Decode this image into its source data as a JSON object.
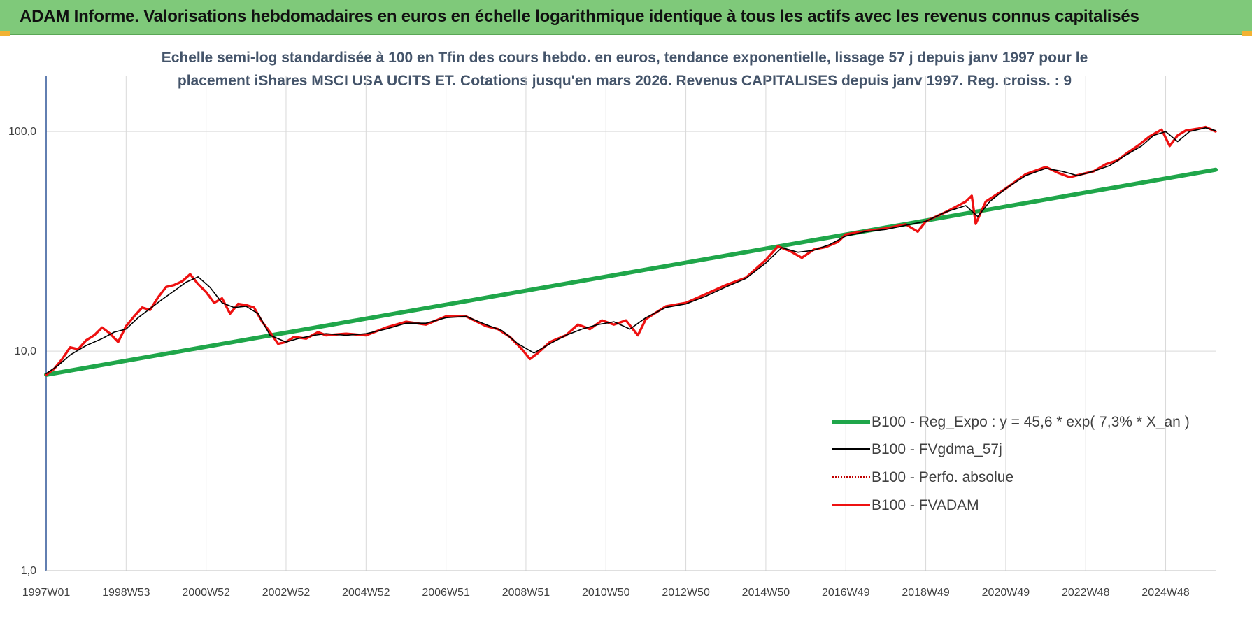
{
  "header": {
    "title": "ADAM Informe. Valorisations hebdomadaires en euros en échelle logarithmique identique à tous les actifs avec les revenus connus capitalisés"
  },
  "colors": {
    "header_bg": "#7fc97a",
    "trend": "#1fa64a",
    "smooth": "#000000",
    "perf": "#c00000",
    "fvadam": "#ee1111",
    "grid": "#d9d9d9",
    "axis": "#2f5597"
  },
  "chart_data": {
    "type": "line",
    "title_lines": [
      "Echelle semi-log standardisée à 100 en Tfin des cours hebdo. en euros, tendance exponentielle, lissage 57 j depuis janv 1997 pour le",
      "placement iShares MSCI USA UCITS ET. Cotations jusqu'en mars 2026. Revenus CAPITALISES depuis janv 1997. Reg. croiss. : 9"
    ],
    "y_scale": "log",
    "ylim": [
      1,
      180
    ],
    "y_ticks": [
      {
        "value": 1,
        "label": "1,0"
      },
      {
        "value": 10,
        "label": "10,0"
      },
      {
        "value": 100,
        "label": "100,0"
      }
    ],
    "xlim": [
      1997.0,
      2026.25
    ],
    "x_ticks": [
      {
        "value": 1997.0,
        "label": "1997W01"
      },
      {
        "value": 1999.0,
        "label": "1998W53"
      },
      {
        "value": 2001.0,
        "label": "2000W52"
      },
      {
        "value": 2003.0,
        "label": "2002W52"
      },
      {
        "value": 2005.0,
        "label": "2004W52"
      },
      {
        "value": 2007.0,
        "label": "2006W51"
      },
      {
        "value": 2009.0,
        "label": "2008W51"
      },
      {
        "value": 2011.0,
        "label": "2010W50"
      },
      {
        "value": 2013.0,
        "label": "2012W50"
      },
      {
        "value": 2015.0,
        "label": "2014W50"
      },
      {
        "value": 2017.0,
        "label": "2016W49"
      },
      {
        "value": 2019.0,
        "label": "2018W49"
      },
      {
        "value": 2021.0,
        "label": "2020W49"
      },
      {
        "value": 2023.0,
        "label": "2022W48"
      },
      {
        "value": 2025.0,
        "label": "2024W48"
      }
    ],
    "legend_position": "bottom-right",
    "grid": true,
    "series": [
      {
        "name": "B100 - Reg_Expo : y = 45,6 * exp( 7,3% *  X_an )",
        "key": "trend",
        "style": "thick",
        "x": [
          1997.0,
          2026.25
        ],
        "y": [
          7.8,
          67.0
        ]
      },
      {
        "name": "B100 - FVgdma_57j",
        "key": "smooth",
        "style": "thin",
        "x": [
          1997.0,
          1997.3,
          1997.6,
          1998.0,
          1998.4,
          1998.7,
          1999.0,
          1999.3,
          1999.6,
          1999.9,
          2000.2,
          2000.5,
          2000.8,
          2001.1,
          2001.4,
          2001.7,
          2002.0,
          2002.3,
          2002.6,
          2003.0,
          2003.3,
          2003.7,
          2004.0,
          2004.5,
          2005.0,
          2005.5,
          2006.0,
          2006.5,
          2007.0,
          2007.5,
          2008.0,
          2008.4,
          2008.8,
          2009.2,
          2009.6,
          2010.0,
          2010.4,
          2010.8,
          2011.2,
          2011.6,
          2012.0,
          2012.5,
          2013.0,
          2013.5,
          2014.0,
          2014.5,
          2015.0,
          2015.4,
          2015.8,
          2016.2,
          2016.6,
          2017.0,
          2017.5,
          2018.0,
          2018.5,
          2019.0,
          2019.5,
          2020.0,
          2020.3,
          2020.6,
          2021.0,
          2021.5,
          2022.0,
          2022.4,
          2022.8,
          2023.2,
          2023.6,
          2024.0,
          2024.4,
          2024.7,
          2025.0,
          2025.3,
          2025.6,
          2026.0,
          2026.25
        ],
        "y": [
          7.9,
          8.6,
          9.6,
          10.6,
          11.4,
          12.2,
          12.6,
          14.2,
          15.6,
          17.2,
          18.8,
          20.6,
          21.8,
          19.5,
          16.6,
          15.8,
          16.0,
          14.8,
          11.8,
          11.0,
          11.4,
          11.8,
          12.0,
          11.8,
          12.0,
          12.6,
          13.4,
          13.4,
          14.2,
          14.4,
          13.2,
          12.4,
          10.8,
          9.8,
          10.8,
          11.8,
          12.6,
          13.2,
          13.6,
          12.6,
          14.2,
          15.8,
          16.4,
          17.8,
          19.6,
          21.4,
          25.2,
          29.6,
          28.2,
          28.8,
          30.6,
          33.4,
          35.0,
          35.8,
          37.4,
          39.0,
          43.0,
          46.0,
          41.0,
          48.0,
          55.0,
          63.0,
          68.0,
          66.0,
          63.0,
          66.0,
          70.0,
          78.0,
          86.0,
          96.0,
          100.0,
          90.0,
          100.0,
          104.0,
          101.0
        ]
      },
      {
        "name": "B100 - Perfo. absolue",
        "key": "perf",
        "style": "dotted"
      },
      {
        "name": "B100 - FVADAM",
        "key": "fvadam",
        "style": "thick",
        "x": [
          1997.0,
          1997.2,
          1997.4,
          1997.6,
          1997.8,
          1998.0,
          1998.2,
          1998.4,
          1998.6,
          1998.8,
          1999.0,
          1999.2,
          1999.4,
          1999.6,
          1999.8,
          2000.0,
          2000.2,
          2000.4,
          2000.6,
          2000.8,
          2001.0,
          2001.2,
          2001.4,
          2001.6,
          2001.8,
          2002.0,
          2002.2,
          2002.4,
          2002.6,
          2002.8,
          2003.0,
          2003.2,
          2003.5,
          2003.8,
          2004.0,
          2004.5,
          2005.0,
          2005.5,
          2006.0,
          2006.5,
          2007.0,
          2007.5,
          2008.0,
          2008.3,
          2008.6,
          2008.9,
          2009.1,
          2009.3,
          2009.6,
          2010.0,
          2010.3,
          2010.6,
          2010.9,
          2011.2,
          2011.5,
          2011.8,
          2012.0,
          2012.5,
          2013.0,
          2013.5,
          2014.0,
          2014.5,
          2015.0,
          2015.3,
          2015.6,
          2015.9,
          2016.2,
          2016.5,
          2016.8,
          2017.0,
          2017.5,
          2018.0,
          2018.5,
          2018.8,
          2019.0,
          2019.5,
          2020.0,
          2020.15,
          2020.25,
          2020.5,
          2021.0,
          2021.5,
          2022.0,
          2022.3,
          2022.6,
          2022.9,
          2023.2,
          2023.5,
          2023.8,
          2024.0,
          2024.3,
          2024.6,
          2024.9,
          2025.1,
          2025.3,
          2025.5,
          2025.8,
          2026.0,
          2026.25
        ],
        "y": [
          7.8,
          8.3,
          9.2,
          10.4,
          10.2,
          11.2,
          11.8,
          12.8,
          12.0,
          11.0,
          13.0,
          14.4,
          15.8,
          15.4,
          17.6,
          19.6,
          20.0,
          20.8,
          22.4,
          20.2,
          18.6,
          16.6,
          17.4,
          14.8,
          16.4,
          16.2,
          15.8,
          13.6,
          12.2,
          10.8,
          11.0,
          11.6,
          11.4,
          12.2,
          11.8,
          12.0,
          11.8,
          12.8,
          13.6,
          13.2,
          14.4,
          14.4,
          13.0,
          12.6,
          11.6,
          10.2,
          9.2,
          9.8,
          11.0,
          11.8,
          13.2,
          12.6,
          13.8,
          13.2,
          13.8,
          11.8,
          14.0,
          16.0,
          16.6,
          18.2,
          20.0,
          21.6,
          26.0,
          30.0,
          28.6,
          26.6,
          29.0,
          29.8,
          31.4,
          34.0,
          35.2,
          36.2,
          37.8,
          35.0,
          39.0,
          43.0,
          48.0,
          51.0,
          38.0,
          48.0,
          55.0,
          64.0,
          69.0,
          65.0,
          62.0,
          64.0,
          66.0,
          71.0,
          74.0,
          79.0,
          86.0,
          95.0,
          102.0,
          86.0,
          96.0,
          101.0,
          103.0,
          105.0,
          100.0
        ]
      }
    ]
  }
}
